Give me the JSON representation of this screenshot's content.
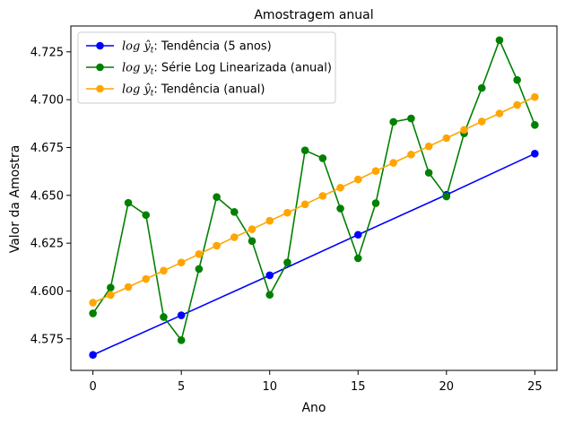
{
  "chart_data": {
    "type": "line",
    "title": "Amostragem anual",
    "xlabel": "Ano",
    "ylabel": "Valor da Amostra",
    "xlim": [
      -1.25,
      26.25
    ],
    "ylim": [
      4.5585,
      4.7385
    ],
    "xticks": [
      0,
      5,
      10,
      15,
      20,
      25
    ],
    "xtick_labels": [
      "0",
      "5",
      "10",
      "15",
      "20",
      "25"
    ],
    "yticks": [
      4.575,
      4.6,
      4.625,
      4.65,
      4.675,
      4.7,
      4.725
    ],
    "ytick_labels": [
      "4.575",
      "4.600",
      "4.625",
      "4.650",
      "4.675",
      "4.700",
      "4.725"
    ],
    "grid": false,
    "legend_position": "top-left",
    "series": [
      {
        "name_math": "log ŷ",
        "name_sub": "t",
        "name_text": ": Tendência (5 anos)",
        "color": "#0000ff",
        "x": [
          0,
          5,
          10,
          15,
          20,
          25
        ],
        "y": [
          4.5666,
          4.5873,
          4.6082,
          4.6294,
          4.6503,
          4.6718
        ]
      },
      {
        "name_math": "log y",
        "name_sub": "t",
        "name_text": ": Série Log Linearizada (anual)",
        "color": "#008000",
        "x": [
          0,
          1,
          2,
          3,
          4,
          5,
          6,
          7,
          8,
          9,
          10,
          11,
          12,
          13,
          14,
          15,
          16,
          17,
          18,
          19,
          20,
          21,
          22,
          23,
          24,
          25
        ],
        "y": [
          4.5883,
          4.6018,
          4.6461,
          4.6397,
          4.5864,
          4.5743,
          4.6115,
          4.6491,
          4.6413,
          4.6261,
          4.598,
          4.6149,
          4.6735,
          4.6694,
          4.6431,
          4.6171,
          4.6459,
          4.6884,
          4.6902,
          4.6618,
          4.6494,
          4.6824,
          4.7061,
          4.7311,
          4.7103,
          4.6868
        ]
      },
      {
        "name_math": "log ŷ",
        "name_sub": "t",
        "name_text": ": Tendência (anual)",
        "color": "#ffa500",
        "x": [
          0,
          1,
          2,
          3,
          4,
          5,
          6,
          7,
          8,
          9,
          10,
          11,
          12,
          13,
          14,
          15,
          16,
          17,
          18,
          19,
          20,
          21,
          22,
          23,
          24,
          25
        ],
        "y": [
          4.5939,
          4.5979,
          4.6021,
          4.6063,
          4.6106,
          4.6149,
          4.6193,
          4.6237,
          4.6281,
          4.6323,
          4.6367,
          4.6409,
          4.6453,
          4.6497,
          4.654,
          4.6583,
          4.6627,
          4.667,
          4.6713,
          4.6756,
          4.6799,
          4.6842,
          4.6886,
          4.6928,
          4.6972,
          4.7014
        ]
      }
    ]
  }
}
